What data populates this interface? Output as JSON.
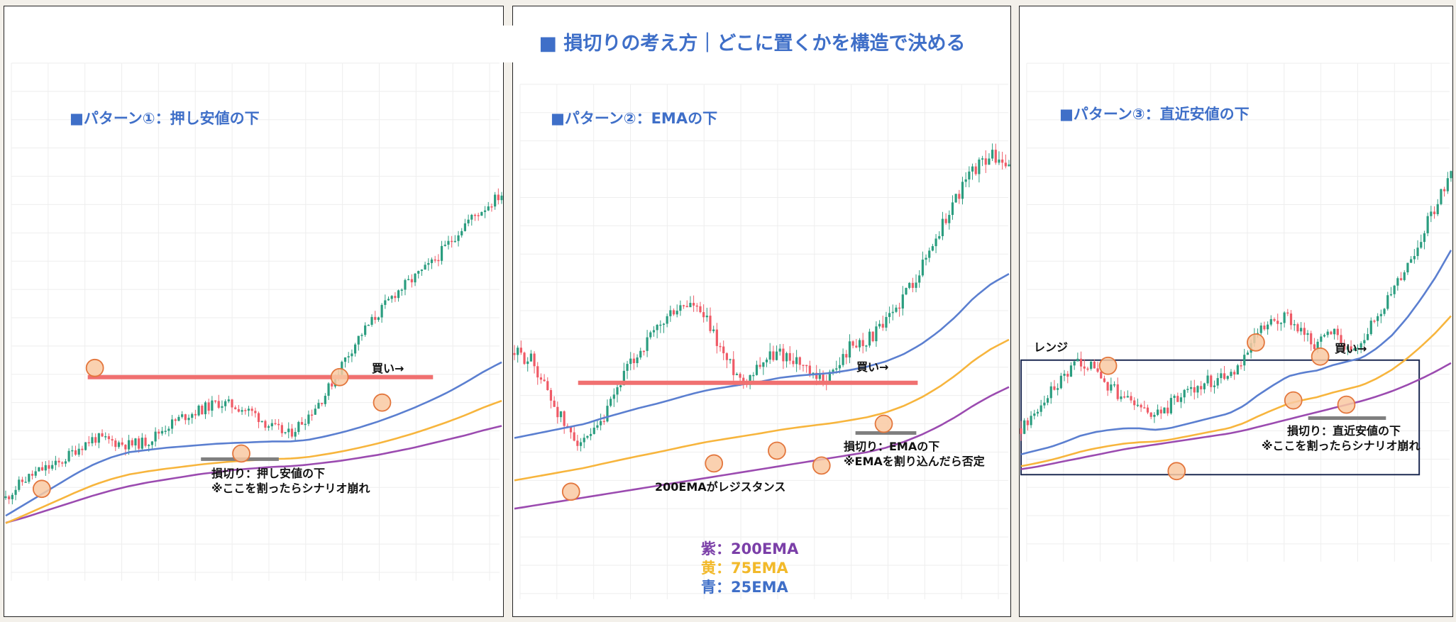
{
  "title": "■ 損切りの考え方｜どこに置くかを構造で決める",
  "colors": {
    "candle_up": "#2a9d7f",
    "candle_down": "#ef5a66",
    "ema25": "#5b7fd0",
    "ema75": "#f7b53d",
    "ema200": "#9b4bb0",
    "level": "#f07070",
    "marker_fill": "#f9c9a2",
    "marker_stroke": "#e3763c",
    "stop_bar": "#7f7f7f",
    "accent": "#3f6fc8"
  },
  "panels": [
    {
      "title": "■パターン①：押し安値の下",
      "buy_label": "買い→",
      "stop_lines": [
        "損切り：押し安値の下",
        "※ここを割ったらシナリオ崩れ"
      ]
    },
    {
      "title": "■パターン②：EMAの下",
      "buy_label": "買い→",
      "stop_lines": [
        "損切り：EMAの下",
        "※EMAを割り込んだら否定"
      ],
      "resistance_label": "200EMAがレジスタンス",
      "legend": [
        {
          "text": "紫：200EMA",
          "color": "#7b3fa8"
        },
        {
          "text": "黄：75EMA",
          "color": "#f2b92a"
        },
        {
          "text": "青：25EMA",
          "color": "#3f6fc8"
        }
      ]
    },
    {
      "title": "■パターン③：直近安値の下",
      "buy_label": "買い→",
      "range_label": "レンジ",
      "stop_lines": [
        "損切り：直近安値の下",
        "※ここを割ったらシナリオ崩れ"
      ]
    }
  ],
  "chart_data": [
    {
      "type": "line",
      "title": "■パターン①：押し安値の下",
      "series": [
        {
          "values": [
            70,
            95,
            110,
            118,
            140,
            155,
            150,
            145,
            150,
            170,
            185,
            195,
            205,
            200,
            190,
            170,
            160,
            185,
            215,
            260,
            300,
            330,
            360,
            380,
            400,
            430,
            460,
            480,
            500
          ]
        },
        {
          "values": [
            45,
            60,
            75,
            90,
            105,
            118,
            128,
            135,
            138,
            141,
            143,
            145,
            147,
            148,
            149,
            150,
            150,
            152,
            157,
            163,
            170,
            178,
            187,
            197,
            208,
            220,
            234,
            249,
            262
          ]
        },
        {
          "values": [
            35,
            42,
            50,
            58,
            66,
            74,
            81,
            87,
            92,
            96,
            100,
            104,
            107,
            110,
            112,
            114,
            115,
            117,
            120,
            123,
            127,
            131,
            136,
            141,
            147,
            153,
            159,
            166,
            172
          ]
        }
      ]
    },
    {
      "type": "line",
      "title": "■パターン②：EMAの下",
      "series": [
        {
          "values": [
            300,
            290,
            240,
            190,
            170,
            200,
            260,
            300,
            330,
            360,
            370,
            340,
            290,
            260,
            290,
            300,
            290,
            260,
            270,
            310,
            320,
            340,
            380,
            420,
            470,
            520,
            560,
            580,
            560
          ]
        },
        {
          "values": [
            180,
            185,
            190,
            195,
            200,
            208,
            215,
            222,
            228,
            235,
            242,
            248,
            252,
            256,
            260,
            265,
            268,
            270,
            272,
            276,
            281,
            288,
            298,
            312,
            330,
            352,
            378,
            398,
            412
          ]
        },
        {
          "values": [
            80,
            84,
            88,
            92,
            96,
            100,
            104,
            108,
            112,
            116,
            120,
            124,
            128,
            132,
            136,
            140,
            144,
            148,
            152,
            156,
            160,
            166,
            174,
            184,
            196,
            210,
            226,
            240,
            252
          ]
        }
      ]
    },
    {
      "type": "line",
      "title": "■パターン③：直近安値の下",
      "series": [
        {
          "values": [
            110,
            130,
            160,
            180,
            200,
            190,
            165,
            150,
            140,
            125,
            140,
            160,
            170,
            175,
            185,
            200,
            240,
            250,
            260,
            240,
            220,
            245,
            220,
            230,
            260,
            290,
            330,
            370,
            410,
            460
          ]
        },
        {
          "values": [
            75,
            80,
            85,
            92,
            100,
            105,
            108,
            110,
            110,
            108,
            110,
            115,
            120,
            125,
            130,
            140,
            155,
            168,
            180,
            185,
            188,
            195,
            200,
            205,
            218,
            235,
            258,
            285,
            315,
            350
          ]
        },
        {
          "values": [
            55,
            58,
            62,
            66,
            70,
            74,
            78,
            82,
            85,
            88,
            91,
            94,
            97,
            100,
            103,
            107,
            112,
            117,
            122,
            127,
            132,
            137,
            142,
            147,
            153,
            160,
            168,
            177,
            187,
            198
          ]
        }
      ]
    }
  ]
}
